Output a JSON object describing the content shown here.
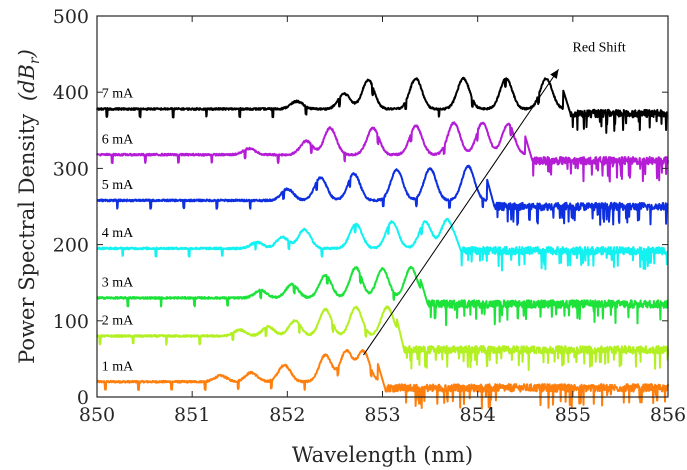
{
  "chart_data": {
    "type": "line",
    "xlabel": "Wavelength (nm)",
    "ylabel_text": "Power Spectral Density",
    "ylabel_unit_base": "dB",
    "ylabel_unit_sub": "r",
    "xlim": [
      850,
      856
    ],
    "ylim": [
      0,
      500
    ],
    "x_ticks": [
      "850",
      "851",
      "852",
      "853",
      "854",
      "855",
      "856"
    ],
    "y_ticks": [
      "0",
      "100",
      "200",
      "300",
      "400",
      "500"
    ],
    "grid": false,
    "annotation": {
      "text": "Red Shift",
      "from": [
        852.8,
        55
      ],
      "to": [
        854.85,
        430
      ]
    },
    "series": [
      {
        "name": "1 mA",
        "color": "#ff7f0e",
        "baseline": 20,
        "noise_floor": 10,
        "edge": 852.95,
        "peaks": [
          [
            851.3,
            8
          ],
          [
            851.62,
            12
          ],
          [
            851.97,
            22
          ],
          [
            852.4,
            35
          ],
          [
            852.62,
            40
          ],
          [
            852.8,
            40
          ]
        ],
        "x_start": 850.0,
        "x_end": 856.0
      },
      {
        "name": "2 mA",
        "color": "#b3f023",
        "baseline": 80,
        "noise_floor": 60,
        "edge": 853.15,
        "peaks": [
          [
            851.5,
            8
          ],
          [
            851.8,
            12
          ],
          [
            852.08,
            20
          ],
          [
            852.4,
            35
          ],
          [
            852.72,
            38
          ],
          [
            853.05,
            38
          ]
        ],
        "x_start": 850.0,
        "x_end": 856.0
      },
      {
        "name": "3 mA",
        "color": "#1de23a",
        "baseline": 130,
        "noise_floor": 120,
        "edge": 853.4,
        "peaks": [
          [
            851.72,
            10
          ],
          [
            852.05,
            18
          ],
          [
            852.4,
            30
          ],
          [
            852.72,
            40
          ],
          [
            853.0,
            38
          ],
          [
            853.3,
            40
          ]
        ],
        "x_start": 850.0,
        "x_end": 856.0
      },
      {
        "name": "4 mA",
        "color": "#14f1f1",
        "baseline": 195,
        "noise_floor": 190,
        "edge": 853.75,
        "peaks": [
          [
            851.68,
            8
          ],
          [
            851.95,
            15
          ],
          [
            852.18,
            25
          ],
          [
            852.72,
            32
          ],
          [
            853.1,
            35
          ],
          [
            853.45,
            35
          ],
          [
            853.68,
            38
          ]
        ],
        "x_start": 850.0,
        "x_end": 856.0
      },
      {
        "name": "5 mA",
        "color": "#0d2fe0",
        "baseline": 258,
        "noise_floor": 248,
        "edge": 854.1,
        "peaks": [
          [
            852.0,
            15
          ],
          [
            852.35,
            30
          ],
          [
            852.7,
            35
          ],
          [
            853.15,
            40
          ],
          [
            853.5,
            42
          ],
          [
            853.9,
            45
          ]
        ],
        "x_start": 850.0,
        "x_end": 856.0
      },
      {
        "name": "6 mA",
        "color": "#b41cd6",
        "baseline": 318,
        "noise_floor": 308,
        "edge": 854.5,
        "peaks": [
          [
            851.6,
            8
          ],
          [
            852.2,
            18
          ],
          [
            852.45,
            35
          ],
          [
            852.9,
            35
          ],
          [
            853.35,
            38
          ],
          [
            853.75,
            42
          ],
          [
            854.05,
            42
          ],
          [
            854.32,
            40
          ]
        ],
        "x_start": 850.0,
        "x_end": 856.0
      },
      {
        "name": "7 mA",
        "color": "#000000",
        "baseline": 378,
        "noise_floor": 370,
        "edge": 854.9,
        "peaks": [
          [
            852.1,
            10
          ],
          [
            852.6,
            20
          ],
          [
            852.85,
            38
          ],
          [
            853.35,
            40
          ],
          [
            853.85,
            40
          ],
          [
            854.3,
            40
          ],
          [
            854.72,
            40
          ]
        ],
        "x_start": 850.0,
        "x_end": 856.0
      }
    ]
  }
}
